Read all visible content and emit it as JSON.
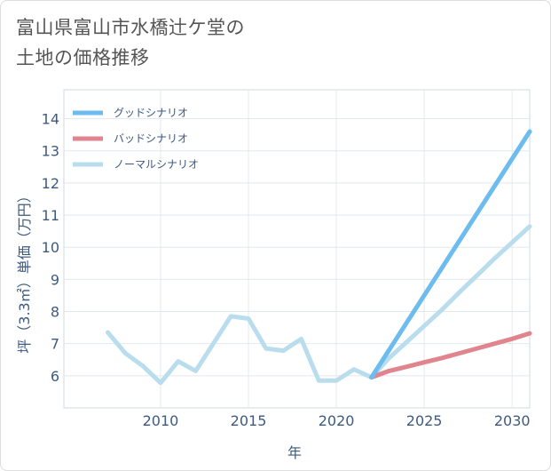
{
  "page": {
    "title_line1": "富山県富山市水橋辻ケ堂の",
    "title_line2": "土地の価格推移"
  },
  "chart_data": {
    "type": "line",
    "title": "富山県富山市水橋辻ケ堂の土地の価格推移",
    "xlabel": "年",
    "ylabel": "坪（3.3㎡）単価（万円）",
    "xlim": [
      2004.5,
      2031
    ],
    "ylim": [
      5.0,
      14.9
    ],
    "xticks": [
      2010,
      2015,
      2020,
      2025,
      2030
    ],
    "yticks": [
      6,
      7,
      8,
      9,
      10,
      11,
      12,
      13,
      14
    ],
    "grid": true,
    "legend_position": "top-left",
    "series": [
      {
        "name": "グッドシナリオ",
        "color": "#6cbcef",
        "x": [
          2022,
          2031
        ],
        "y": [
          5.95,
          13.6
        ]
      },
      {
        "name": "バッドシナリオ",
        "color": "#e0848e",
        "x": [
          2022,
          2023,
          2024,
          2025,
          2026,
          2027,
          2028,
          2029,
          2030,
          2031
        ],
        "y": [
          5.95,
          6.15,
          6.28,
          6.42,
          6.55,
          6.7,
          6.85,
          7.0,
          7.15,
          7.32
        ]
      },
      {
        "name": "ノーマルシナリオ",
        "color": "#b9ddec",
        "x": [
          2007,
          2008,
          2009,
          2010,
          2011,
          2012,
          2013,
          2014,
          2015,
          2016,
          2017,
          2018,
          2019,
          2020,
          2021,
          2022,
          2023,
          2024,
          2025,
          2026,
          2027,
          2028,
          2029,
          2030,
          2031
        ],
        "y": [
          7.35,
          6.7,
          6.3,
          5.78,
          6.45,
          6.15,
          7.0,
          7.85,
          7.78,
          6.85,
          6.78,
          7.15,
          5.85,
          5.85,
          6.2,
          5.95,
          6.55,
          7.05,
          7.55,
          8.05,
          8.6,
          9.12,
          9.65,
          10.15,
          10.65
        ]
      }
    ]
  }
}
